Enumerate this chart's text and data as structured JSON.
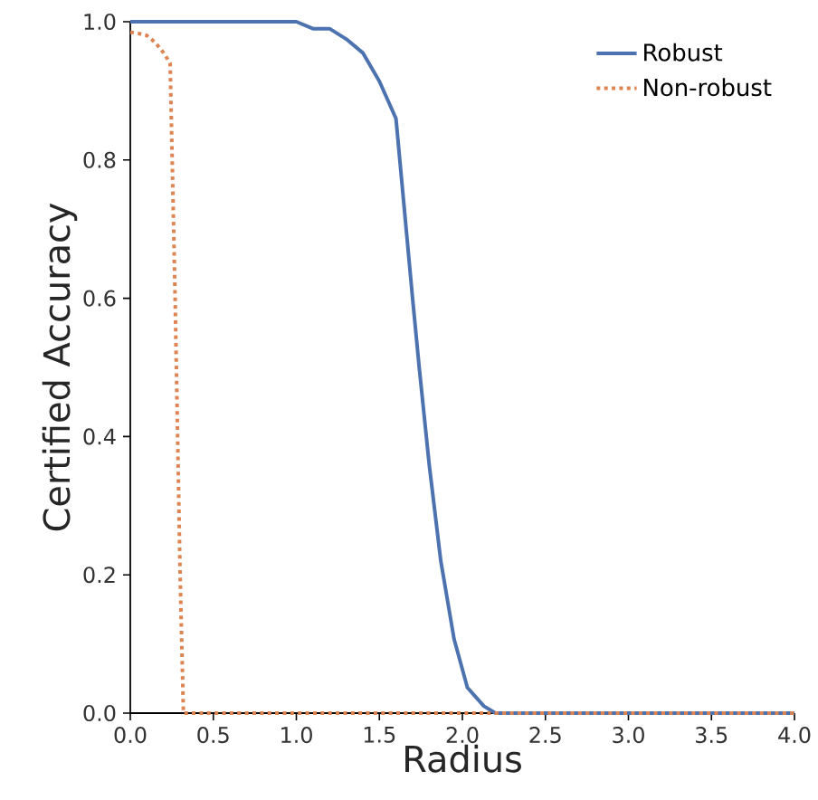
{
  "chart_data": {
    "type": "line",
    "xlabel": "Radius",
    "ylabel": "Certified Accuracy",
    "xlim": [
      0,
      4
    ],
    "ylim": [
      0,
      1
    ],
    "xticks": [
      {
        "value": 0,
        "label": "0.0"
      },
      0.5,
      {
        "value": 1,
        "label": "1.0"
      },
      1.5,
      {
        "value": 2,
        "label": "2.0"
      },
      2.5,
      {
        "value": 3,
        "label": "3.0"
      },
      3.5,
      {
        "value": 4,
        "label": "4.0"
      }
    ],
    "yticks": [
      {
        "value": 0,
        "label": "0.0"
      },
      0.2,
      0.4,
      0.6,
      0.8,
      {
        "value": 1,
        "label": "1.0"
      }
    ],
    "legend": "top right",
    "grid": false,
    "series": [
      {
        "name": "Robust",
        "color": "#4c72b0",
        "line_style": "solid",
        "x": [
          0,
          0.5,
          1.0,
          1.1,
          1.2,
          1.3,
          1.4,
          1.5,
          1.6,
          1.7,
          1.74,
          1.8,
          1.87,
          1.95,
          2.03,
          2.13,
          2.2,
          2.5,
          3.0,
          3.5,
          4.0
        ],
        "values": [
          1,
          1,
          1,
          0.99,
          0.99,
          0.975,
          0.955,
          0.914,
          0.86,
          0.6,
          0.5,
          0.36,
          0.22,
          0.107,
          0.037,
          0.01,
          0,
          0,
          0,
          0,
          0
        ]
      },
      {
        "name": "Non-robust",
        "color": "#dd8452",
        "line_style": "dotted",
        "x": [
          0,
          0.05,
          0.1,
          0.15,
          0.2,
          0.24,
          0.27,
          0.3,
          0.32,
          0.5,
          1.0,
          2.0,
          3.0,
          4.0
        ],
        "values": [
          0.985,
          0.983,
          0.98,
          0.97,
          0.955,
          0.94,
          0.6,
          0.2,
          0,
          0,
          0,
          0,
          0,
          0
        ]
      }
    ]
  }
}
